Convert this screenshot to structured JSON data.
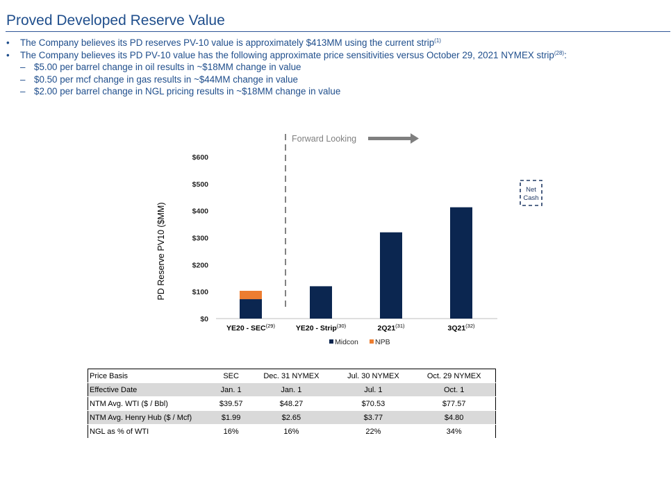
{
  "title": "Proved Developed Reserve Value",
  "bullets": [
    {
      "level": 1,
      "mark": "•",
      "text": "The Company believes its PD reserves PV-10 value is approximately $413MM using the current strip",
      "sup": "(1)",
      "tail": ""
    },
    {
      "level": 1,
      "mark": "•",
      "text": "The Company believes its PD PV-10 value has the following approximate price sensitivities versus October 29, 2021 NYMEX strip",
      "sup": "(28)",
      "tail": ":"
    },
    {
      "level": 2,
      "mark": "–",
      "text": "$5.00 per barrel change in oil results in ~$18MM change in value",
      "sup": "",
      "tail": ""
    },
    {
      "level": 2,
      "mark": "–",
      "text": "$0.50 per mcf change in gas results in ~$44MM change in value",
      "sup": "",
      "tail": ""
    },
    {
      "level": 2,
      "mark": "–",
      "text": "$2.00 per barrel change in NGL pricing results in ~$18MM change in value",
      "sup": "",
      "tail": ""
    }
  ],
  "chart_data": {
    "type": "bar",
    "stacked": true,
    "ylabel": "PD Reserve PV10 ($MM)",
    "ylim": [
      0,
      600
    ],
    "yticks": [
      0,
      100,
      200,
      300,
      400,
      500,
      600
    ],
    "ytick_labels": [
      "$0",
      "$100",
      "$200",
      "$300",
      "$400",
      "$500",
      "$600"
    ],
    "categories": [
      "YE20 - SEC",
      "YE20 - Strip",
      "2Q21",
      "3Q21"
    ],
    "category_sups": [
      "(29)",
      "(30)",
      "(31)",
      "(32)"
    ],
    "series": [
      {
        "name": "Midcon",
        "color": "#0b2650",
        "values": [
          72,
          120,
          320,
          413
        ]
      },
      {
        "name": "NPB",
        "color": "#ed7d31",
        "values": [
          31,
          0,
          0,
          0
        ]
      }
    ],
    "annotations": {
      "forward_looking": "Forward Looking",
      "net_cash": [
        "Net",
        "Cash"
      ]
    },
    "legend_position": "bottom"
  },
  "table": {
    "headers": [
      "Price Basis",
      "SEC",
      "Dec. 31 NYMEX",
      "Jul. 30 NYMEX",
      "Oct. 29 NYMEX"
    ],
    "rows": [
      [
        "Effective Date",
        "Jan. 1",
        "Jan. 1",
        "Jul. 1",
        "Oct. 1"
      ],
      [
        "NTM Avg. WTI ($ / Bbl)",
        "$39.57",
        "$48.27",
        "$70.53",
        "$77.57"
      ],
      [
        "NTM Avg.  Henry Hub ($ / Mcf)",
        "$1.99",
        "$2.65",
        "$3.77",
        "$4.80"
      ],
      [
        "NGL as % of WTI",
        "16%",
        "16%",
        "22%",
        "34%"
      ]
    ]
  }
}
